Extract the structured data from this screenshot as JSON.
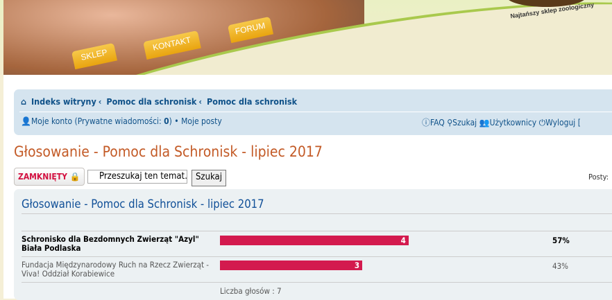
{
  "header": {
    "tabs": [
      "SKLEP",
      "KONTAKT",
      "FORUM"
    ],
    "tagline": "Najtańszy sklep zoologiczny"
  },
  "breadcrumbs": [
    "Indeks witryny",
    "Pomoc dla schronisk",
    "Pomoc dla schronisk"
  ],
  "user_links": {
    "account": "Moje konto",
    "pm_label": "(Prywatne wiadomości: ",
    "pm_count": "0",
    "pm_close": ")",
    "sep": "•",
    "my_posts": "Moje posty"
  },
  "right_links": {
    "faq": "FAQ",
    "search": "Szukaj",
    "users": "Użytkownicy",
    "logout": "Wyloguj [ "
  },
  "topic_title": "Głosowanie - Pomoc dla Schronisk - lipiec 2017",
  "locked_label": "ZAMKNIĘTY",
  "search": {
    "placeholder": "Przeszukaj ten temat…",
    "button": "Szukaj"
  },
  "posts_label": "Posty:",
  "poll": {
    "title": "Głosowanie - Pomoc dla Schronisk - lipiec 2017",
    "options": [
      {
        "label": "Schronisko dla Bezdomnych Zwierząt \"Azyl\" Biała Podlaska",
        "votes": "4",
        "percent": "57%",
        "percent_value": 57,
        "winner": true
      },
      {
        "label": "Fundacja Międzynarodowy Ruch na Rzecz Zwierząt - Viva! Oddział Korabiewice",
        "votes": "3",
        "percent": "43%",
        "percent_value": 43,
        "winner": false
      }
    ],
    "total": "Liczba głosów : 7"
  },
  "colors": {
    "bar": "#d31a4e",
    "title": "#c35a26",
    "link": "#105289"
  }
}
